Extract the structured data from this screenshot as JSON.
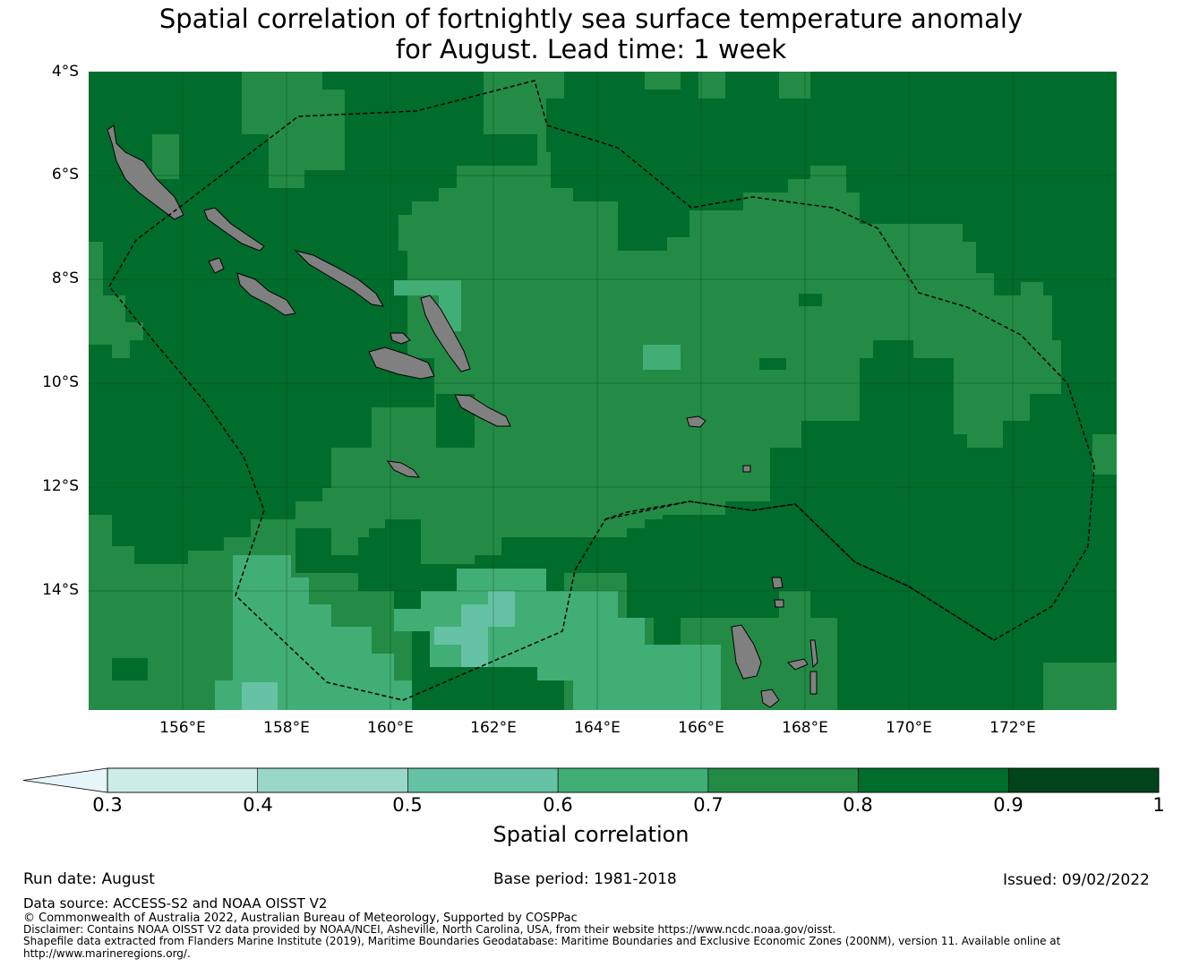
{
  "title_line1": "Spatial correlation of fortnightly sea surface temperature anomaly",
  "title_line2": "for August. Lead time: 1 week",
  "chart_data": {
    "type": "heatmap",
    "variable": "Spatial correlation",
    "lat_labels": [
      "4°S",
      "6°S",
      "8°S",
      "10°S",
      "12°S",
      "14°S"
    ],
    "lat_values": [
      -4,
      -6,
      -8,
      -10,
      -12,
      -14
    ],
    "lon_labels": [
      "156°E",
      "158°E",
      "160°E",
      "162°E",
      "164°E",
      "166°E",
      "168°E",
      "170°E",
      "172°E"
    ],
    "lon_values": [
      156,
      158,
      160,
      162,
      164,
      166,
      168,
      170,
      172
    ],
    "extent": {
      "lon_min": 154.2,
      "lon_max": 174.0,
      "lat_min": -16.3,
      "lat_max": -4.0
    },
    "grid": "on",
    "legend_bins": [
      {
        "from": 0.3,
        "to": 0.4,
        "color": "#ccece6"
      },
      {
        "from": 0.4,
        "to": 0.5,
        "color": "#99d8c9"
      },
      {
        "from": 0.5,
        "to": 0.6,
        "color": "#66c2a4"
      },
      {
        "from": 0.6,
        "to": 0.7,
        "color": "#41ae76"
      },
      {
        "from": 0.7,
        "to": 0.8,
        "color": "#238b45"
      },
      {
        "from": 0.8,
        "to": 0.9,
        "color": "#006d2c"
      },
      {
        "from": 0.9,
        "to": 1.0,
        "color": "#00441b"
      }
    ],
    "under_color": "#e5f5f9",
    "land_color": "#808080",
    "eez_boundary": "dashed black"
  },
  "colorbar": {
    "ticks": [
      "0.3",
      "0.4",
      "0.5",
      "0.6",
      "0.7",
      "0.8",
      "0.9",
      "1"
    ],
    "label": "Spatial correlation"
  },
  "footer": {
    "run_date": "Run date: August",
    "base_period": "Base period: 1981-2018",
    "issued": "Issued: 09/02/2022",
    "data_source": "Data source: ACCESS-S2 and NOAA OISST V2",
    "copyright": "© Commonwealth of Australia 2022, Australian Bureau of Meteorology, Supported by COSPPac",
    "disclaimer": "Disclaimer: Contains NOAA OISST V2 data provided by NOAA/NCEI, Asheville, North Carolina, USA, from their website https://www.ncdc.noaa.gov/oisst.",
    "shapefile_line1": "Shapefile data extracted from Flanders Marine Institute (2019), Maritime Boundaries Geodatabase: Maritime Boundaries and Exclusive Economic Zones (200NM), version 11. Available online at",
    "shapefile_line2": "http://www.marineregions.org/."
  }
}
